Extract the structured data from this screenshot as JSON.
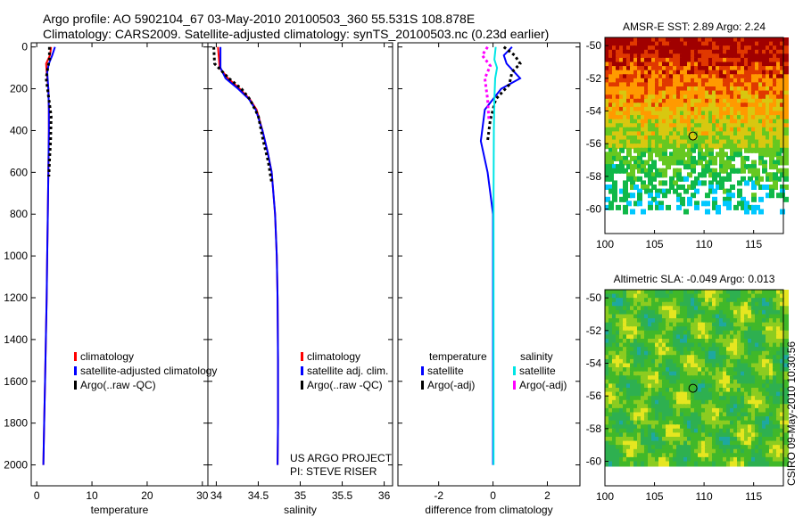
{
  "header": {
    "line1": "Argo profile: AO 5902104_67 03-May-2010 20100503_360 55.531S 108.878E",
    "line2": "Climatology: CARS2009. Satellite-adjusted climatology: synTS_20100503.nc (0.23d earlier)"
  },
  "stamp": "CSIRO 09-May-2010 10:30:56",
  "colors": {
    "climatology": "#ff0000",
    "satellite": "#0000ff",
    "argo": "#000000",
    "sat_salinity": "#00e5e5",
    "argo_salinity": "#ff00ff"
  },
  "chart_data": [
    {
      "type": "line",
      "xlabel": "temperature",
      "ylabel": "",
      "xlim": [
        -1,
        31
      ],
      "ylim": [
        2100,
        -20
      ],
      "xticks": [
        0,
        10,
        20,
        30
      ],
      "yticks": [
        0,
        200,
        400,
        600,
        800,
        1000,
        1200,
        1400,
        1600,
        1800,
        2000
      ],
      "series": [
        {
          "name": "climatology",
          "color": "#ff0000",
          "x": [
            2.6,
            2.4,
            1.7,
            1.8,
            2.1,
            2.2,
            2.2,
            2.15,
            2.1,
            2.0,
            1.9,
            1.8,
            1.65,
            1.5,
            1.35,
            1.2
          ],
          "y": [
            0,
            40,
            80,
            120,
            200,
            300,
            400,
            500,
            600,
            800,
            1000,
            1200,
            1400,
            1600,
            1800,
            2000
          ]
        },
        {
          "name": "satellite-adjusted climatology",
          "color": "#0000ff",
          "x": [
            3.3,
            2.8,
            2.2,
            1.9,
            2.1,
            2.2,
            2.2,
            2.15,
            2.1,
            2.0,
            1.9,
            1.8,
            1.65,
            1.5,
            1.35,
            1.2
          ],
          "y": [
            0,
            40,
            80,
            120,
            200,
            300,
            400,
            500,
            600,
            800,
            1000,
            1200,
            1400,
            1600,
            1800,
            2000
          ]
        },
        {
          "name": "Argo(..raw -QC)",
          "color": "#000000",
          "dashed": true,
          "x": [
            2.3,
            2.3,
            2.0,
            1.7,
            2.2,
            2.6,
            2.5,
            2.3,
            2.2
          ],
          "y": [
            0,
            60,
            100,
            150,
            250,
            330,
            450,
            550,
            620
          ]
        }
      ],
      "legend": [
        "climatology",
        "satellite-adjusted climatology",
        "Argo(..raw -QC)"
      ],
      "legend_position": "lower-right",
      "annotations": []
    },
    {
      "type": "line",
      "xlabel": "salinity",
      "ylabel": "",
      "xlim": [
        33.9,
        36.1
      ],
      "ylim": [
        2100,
        -20
      ],
      "xticks": [
        34,
        34.5,
        35,
        35.5,
        36
      ],
      "series": [
        {
          "name": "climatology",
          "color": "#ff0000",
          "x": [
            34.02,
            34.04,
            34.14,
            34.28,
            34.4,
            34.48,
            34.55,
            34.61,
            34.66,
            34.7,
            34.72,
            34.73,
            34.735,
            34.735,
            34.73
          ],
          "y": [
            0,
            100,
            150,
            200,
            250,
            300,
            400,
            500,
            600,
            800,
            1000,
            1200,
            1500,
            1800,
            2000
          ]
        },
        {
          "name": "satellite adj. clim.",
          "color": "#0000ff",
          "x": [
            34.05,
            34.05,
            34.11,
            34.26,
            34.39,
            34.47,
            34.55,
            34.61,
            34.66,
            34.7,
            34.72,
            34.73,
            34.735,
            34.735,
            34.73
          ],
          "y": [
            0,
            100,
            150,
            200,
            250,
            300,
            400,
            500,
            600,
            800,
            1000,
            1200,
            1500,
            1800,
            2000
          ]
        },
        {
          "name": "Argo(..raw -QC)",
          "color": "#000000",
          "dashed": true,
          "x": [
            33.97,
            33.98,
            34.15,
            34.3,
            34.4,
            34.5,
            34.56,
            34.62,
            34.66
          ],
          "y": [
            0,
            80,
            150,
            200,
            250,
            330,
            450,
            550,
            650
          ]
        }
      ],
      "legend": [
        "climatology",
        "satellite adj. clim.",
        "Argo(..raw -QC)"
      ],
      "legend_position": "lower-right",
      "annotations": [
        "US ARGO PROJECT",
        "PI: STEVE RISER"
      ]
    },
    {
      "type": "line",
      "xlabel": "difference from climatology",
      "ylabel": "",
      "xlim": [
        -3.5,
        3.2
      ],
      "ylim": [
        2100,
        -20
      ],
      "xticks": [
        -2,
        0,
        2
      ],
      "series": [
        {
          "name": "temperature satellite",
          "color": "#0000ff",
          "x": [
            0.7,
            0.4,
            0.5,
            1.0,
            0.3,
            -0.3,
            -0.45,
            -0.2,
            0.0,
            0.0,
            0.0
          ],
          "y": [
            0,
            40,
            80,
            150,
            200,
            300,
            450,
            600,
            800,
            1200,
            2000
          ]
        },
        {
          "name": "temperature Argo(-adj)",
          "color": "#000000",
          "dashed": true,
          "x": [
            0.4,
            0.8,
            1.0,
            0.7,
            0.6,
            0.1,
            -0.1,
            -0.2
          ],
          "y": [
            0,
            40,
            80,
            120,
            180,
            250,
            350,
            450
          ]
        },
        {
          "name": "salinity satellite",
          "color": "#00e5e5",
          "x": [
            0.1,
            0.05,
            0.15,
            0.08,
            0.05,
            0.03,
            0.02,
            0.02,
            0.02,
            0.02
          ],
          "y": [
            0,
            60,
            100,
            150,
            250,
            400,
            700,
            1200,
            1600,
            2000
          ]
        },
        {
          "name": "salinity Argo(-adj)",
          "color": "#ff00ff",
          "dashed": true,
          "x": [
            -0.2,
            -0.4,
            -0.1,
            -0.3,
            -0.2,
            -0.15
          ],
          "y": [
            0,
            40,
            90,
            150,
            250,
            350
          ]
        }
      ],
      "legend_headers": [
        "temperature",
        "salinity"
      ],
      "legend": [
        "satellite",
        "Argo(-adj)",
        "satellite",
        "Argo(-adj)"
      ],
      "legend_position": "lower-center"
    },
    {
      "type": "heatmap",
      "title": "AMSR-E SST: 2.89 Argo: 2.24",
      "xlim": [
        100,
        118
      ],
      "ylim": [
        -61.5,
        -49.5
      ],
      "xticks": [
        100,
        105,
        110,
        115
      ],
      "yticks": [
        -50,
        -52,
        -54,
        -56,
        -58,
        -60
      ],
      "marker": {
        "lon": 108.878,
        "lat": -55.531
      }
    },
    {
      "type": "heatmap",
      "title": "Altimetric SLA: -0.049 Argo: 0.013",
      "xlim": [
        100,
        118
      ],
      "ylim": [
        -61.5,
        -49.5
      ],
      "xticks": [
        100,
        105,
        110,
        115
      ],
      "yticks": [
        -50,
        -52,
        -54,
        -56,
        -58,
        -60
      ],
      "marker": {
        "lon": 108.878,
        "lat": -55.531
      }
    }
  ]
}
